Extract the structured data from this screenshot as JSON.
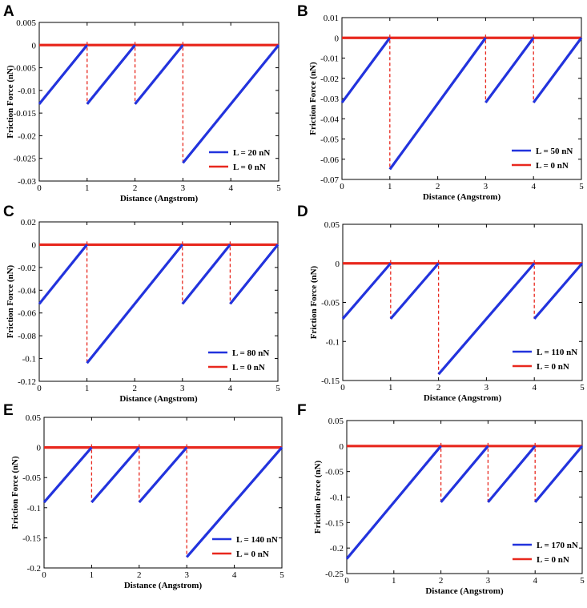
{
  "chart_data": [
    {
      "panel": "A",
      "type": "line",
      "xlabel": "Distance (Angstrom)",
      "ylabel": "Friction Force (nN)",
      "xlim": [
        0,
        5
      ],
      "ylim": [
        -0.03,
        0.005
      ],
      "xticks": [
        "0",
        "1",
        "2",
        "3",
        "4",
        "5"
      ],
      "yticks": [
        0.005,
        0,
        -0.005,
        -0.01,
        -0.015,
        -0.02,
        -0.025,
        -0.03
      ],
      "yticklabels": [
        "0.005",
        "0",
        "-0.005",
        "-0.01",
        "-0.015",
        "-0.02",
        "-0.025",
        "-0.03"
      ],
      "series": [
        {
          "name": "L = 20 nN",
          "color": "#2233dd",
          "segments": [
            [
              [
                0,
                -0.013
              ],
              [
                1,
                0
              ]
            ],
            [
              [
                1,
                -0.013
              ],
              [
                2,
                0
              ]
            ],
            [
              [
                2,
                -0.013
              ],
              [
                3,
                0
              ]
            ],
            [
              [
                3,
                -0.026
              ],
              [
                5,
                0
              ]
            ]
          ]
        },
        {
          "name": "L = 0 nN",
          "color": "#e8281e",
          "line": [
            [
              0,
              0
            ],
            [
              5,
              0
            ]
          ],
          "drops": [
            [
              1,
              -0.013
            ],
            [
              2,
              -0.013
            ],
            [
              3,
              -0.026
            ]
          ]
        }
      ]
    },
    {
      "panel": "B",
      "type": "line",
      "xlabel": "Distance (Angstrom)",
      "ylabel": "Friction Force (nN)",
      "xlim": [
        0,
        5
      ],
      "ylim": [
        -0.07,
        0.01
      ],
      "xticks": [
        "0",
        "1",
        "2",
        "3",
        "4",
        "5"
      ],
      "yticks": [
        0.01,
        0,
        -0.01,
        -0.02,
        -0.03,
        -0.04,
        -0.05,
        -0.06,
        -0.07
      ],
      "yticklabels": [
        "0.01",
        "0",
        "-0.01",
        "-0.02",
        "-0.03",
        "-0.04",
        "-0.05",
        "-0.06",
        "-0.07"
      ],
      "series": [
        {
          "name": "L = 50 nN",
          "color": "#2233dd",
          "segments": [
            [
              [
                0,
                -0.032
              ],
              [
                1,
                0
              ]
            ],
            [
              [
                1,
                -0.065
              ],
              [
                3,
                0
              ]
            ],
            [
              [
                3,
                -0.032
              ],
              [
                4,
                0
              ]
            ],
            [
              [
                4,
                -0.032
              ],
              [
                5,
                0
              ]
            ]
          ]
        },
        {
          "name": "L = 0 nN",
          "color": "#e8281e",
          "line": [
            [
              0,
              0
            ],
            [
              5,
              0
            ]
          ],
          "drops": [
            [
              1,
              -0.065
            ],
            [
              3,
              -0.032
            ],
            [
              4,
              -0.032
            ]
          ]
        }
      ]
    },
    {
      "panel": "C",
      "type": "line",
      "xlabel": "Distance (Angstrom)",
      "ylabel": "Friction Force (nN)",
      "xlim": [
        0,
        5
      ],
      "ylim": [
        -0.12,
        0.02
      ],
      "xticks": [
        "0",
        "1",
        "2",
        "3",
        "4",
        "5"
      ],
      "yticks": [
        0.02,
        0,
        -0.02,
        -0.04,
        -0.06,
        -0.08,
        -0.1,
        -0.12
      ],
      "yticklabels": [
        "0.02",
        "0",
        "-0.02",
        "-0.04",
        "-0.06",
        "-0.08",
        "-0.1",
        "-0.12"
      ],
      "series": [
        {
          "name": "L = 80 nN",
          "color": "#2233dd",
          "segments": [
            [
              [
                0,
                -0.052
              ],
              [
                1,
                0
              ]
            ],
            [
              [
                1,
                -0.104
              ],
              [
                3,
                0
              ]
            ],
            [
              [
                3,
                -0.052
              ],
              [
                4,
                0
              ]
            ],
            [
              [
                4,
                -0.052
              ],
              [
                5,
                0
              ]
            ]
          ]
        },
        {
          "name": "L = 0 nN",
          "color": "#e8281e",
          "line": [
            [
              0,
              0
            ],
            [
              5,
              0
            ]
          ],
          "drops": [
            [
              1,
              -0.104
            ],
            [
              3,
              -0.052
            ],
            [
              4,
              -0.052
            ]
          ]
        }
      ]
    },
    {
      "panel": "D",
      "type": "line",
      "xlabel": "Distance (Angstrom)",
      "ylabel": "Friction Force (nN)",
      "xlim": [
        0,
        5
      ],
      "ylim": [
        -0.15,
        0.05
      ],
      "xticks": [
        "0",
        "1",
        "2",
        "3",
        "4",
        "5"
      ],
      "yticks": [
        0.05,
        0,
        -0.05,
        -0.1,
        -0.15
      ],
      "yticklabels": [
        "0.05",
        "0",
        "-0.05",
        "-0.1",
        "-0.15"
      ],
      "series": [
        {
          "name": "L = 110 nN",
          "color": "#2233dd",
          "segments": [
            [
              [
                0,
                -0.071
              ],
              [
                1,
                0
              ]
            ],
            [
              [
                1,
                -0.071
              ],
              [
                2,
                0
              ]
            ],
            [
              [
                2,
                -0.142
              ],
              [
                4,
                0
              ]
            ],
            [
              [
                4,
                -0.071
              ],
              [
                5,
                0
              ]
            ]
          ]
        },
        {
          "name": "L = 0 nN",
          "color": "#e8281e",
          "line": [
            [
              0,
              0
            ],
            [
              5,
              0
            ]
          ],
          "drops": [
            [
              1,
              -0.071
            ],
            [
              2,
              -0.142
            ],
            [
              4,
              -0.071
            ]
          ]
        }
      ]
    },
    {
      "panel": "E",
      "type": "line",
      "xlabel": "Distance (Angstrom)",
      "ylabel": "Friction Force (nN)",
      "xlim": [
        0,
        5
      ],
      "ylim": [
        -0.2,
        0.05
      ],
      "xticks": [
        "0",
        "1",
        "2",
        "3",
        "4",
        "5"
      ],
      "yticks": [
        0.05,
        0,
        -0.05,
        -0.1,
        -0.15,
        -0.2
      ],
      "yticklabels": [
        "0.05",
        "0",
        "-0.05",
        "-0.1",
        "-0.15",
        "-0.2"
      ],
      "series": [
        {
          "name": "L = 140 nN",
          "color": "#2233dd",
          "segments": [
            [
              [
                0,
                -0.091
              ],
              [
                1,
                0
              ]
            ],
            [
              [
                1,
                -0.091
              ],
              [
                2,
                0
              ]
            ],
            [
              [
                2,
                -0.091
              ],
              [
                3,
                0
              ]
            ],
            [
              [
                3,
                -0.182
              ],
              [
                5,
                0
              ]
            ]
          ]
        },
        {
          "name": "L = 0 nN",
          "color": "#e8281e",
          "line": [
            [
              0,
              0
            ],
            [
              5,
              0
            ]
          ],
          "drops": [
            [
              1,
              -0.091
            ],
            [
              2,
              -0.091
            ],
            [
              3,
              -0.182
            ]
          ]
        }
      ]
    },
    {
      "panel": "F",
      "type": "line",
      "xlabel": "Distance (Angstrom)",
      "ylabel": "Friction Force (nN)",
      "xlim": [
        0,
        5
      ],
      "ylim": [
        -0.25,
        0.05
      ],
      "xticks": [
        "0",
        "1",
        "2",
        "3",
        "4",
        "5"
      ],
      "yticks": [
        0.05,
        0,
        -0.05,
        -0.1,
        -0.15,
        -0.2,
        -0.25
      ],
      "yticklabels": [
        "0.05",
        "0",
        "-0.05",
        "-0.1",
        "-0.15",
        "-0.2",
        "-0.25"
      ],
      "series": [
        {
          "name": "L = 170 nN",
          "color": "#2233dd",
          "segments": [
            [
              [
                0,
                -0.221
              ],
              [
                2,
                0
              ]
            ],
            [
              [
                2,
                -0.11
              ],
              [
                3,
                0
              ]
            ],
            [
              [
                3,
                -0.11
              ],
              [
                4,
                0
              ]
            ],
            [
              [
                4,
                -0.11
              ],
              [
                5,
                0
              ]
            ]
          ]
        },
        {
          "name": "L = 0 nN",
          "color": "#e8281e",
          "line": [
            [
              0,
              0
            ],
            [
              5,
              0
            ]
          ],
          "drops": [
            [
              2,
              -0.11
            ],
            [
              3,
              -0.11
            ],
            [
              4,
              -0.11
            ]
          ]
        }
      ]
    }
  ]
}
